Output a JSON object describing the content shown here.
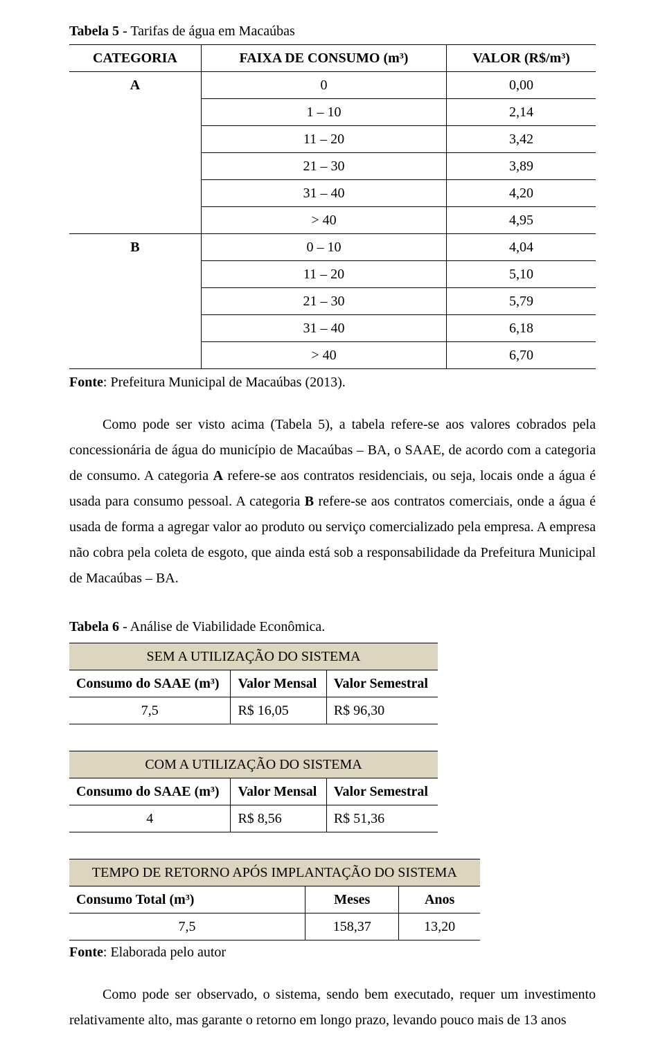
{
  "table5": {
    "caption_prefix": "Tabela 5",
    "caption_rest": " - Tarifas de água em Macaúbas",
    "headers": [
      "CATEGORIA",
      "FAIXA DE CONSUMO (m³)",
      "VALOR (R$/m³)"
    ],
    "rows": [
      {
        "cat": "A",
        "rowspan": 6,
        "range": "0",
        "value": "0,00"
      },
      {
        "range": "1 – 10",
        "value": "2,14"
      },
      {
        "range": "11 – 20",
        "value": "3,42"
      },
      {
        "range": "21 – 30",
        "value": "3,89"
      },
      {
        "range": "31 – 40",
        "value": "4,20"
      },
      {
        "range": "> 40",
        "value": "4,95"
      },
      {
        "cat": "B",
        "rowspan": 5,
        "range": "0 – 10",
        "value": "4,04"
      },
      {
        "range": "11 – 20",
        "value": "5,10"
      },
      {
        "range": "21 – 30",
        "value": "5,79"
      },
      {
        "range": "31 – 40",
        "value": "6,18"
      },
      {
        "range": "> 40",
        "value": "6,70"
      }
    ],
    "fonte_label": "Fonte",
    "fonte_text": ": Prefeitura Municipal de Macaúbas (2013)."
  },
  "paragraph1": "Como pode ser visto acima (Tabela 5), a tabela refere-se aos valores cobrados pela concessionária de água do município de Macaúbas – BA, o SAAE, de acordo com a categoria de consumo. A categoria A refere-se aos contratos residenciais, ou seja, locais onde a água é usada para consumo pessoal. A categoria B refere-se aos contratos comerciais, onde a água é usada de forma a agregar valor ao produto ou serviço comercializado pela empresa. A empresa não cobra pela coleta de esgoto, que ainda está sob a responsabilidade da Prefeitura Municipal de Macaúbas – BA.",
  "table6": {
    "caption_prefix": "Tabela 6",
    "caption_rest": " - Análise de Viabilidade Econômica.",
    "block1": {
      "title": "SEM A UTILIZAÇÃO DO SISTEMA",
      "cols": [
        "Consumo do SAAE (m³)",
        "Valor Mensal",
        "Valor Semestral"
      ],
      "row": [
        "7,5",
        "R$ 16,05",
        "R$ 96,30"
      ]
    },
    "block2": {
      "title": "COM A UTILIZAÇÃO DO SISTEMA",
      "cols": [
        "Consumo do SAAE (m³)",
        "Valor Mensal",
        "Valor Semestral"
      ],
      "row": [
        "4",
        "R$ 8,56",
        "R$ 51,36"
      ]
    },
    "block3": {
      "title": "TEMPO DE RETORNO APÓS IMPLANTAÇÃO DO SISTEMA",
      "cols": [
        "Consumo Total (m³)",
        "Meses",
        "Anos"
      ],
      "row": [
        "7,5",
        "158,37",
        "13,20"
      ]
    },
    "fonte_label": "Fonte",
    "fonte_text": ": Elaborada pelo autor"
  },
  "paragraph2": "Como pode ser observado, o sistema, sendo bem executado, requer um investimento relativamente alto, mas garante o retorno em longo prazo, levando pouco mais de 13 anos",
  "colors": {
    "table_header_bg": "#ddd5c0",
    "text": "#000000",
    "background": "#ffffff",
    "border": "#000000"
  }
}
